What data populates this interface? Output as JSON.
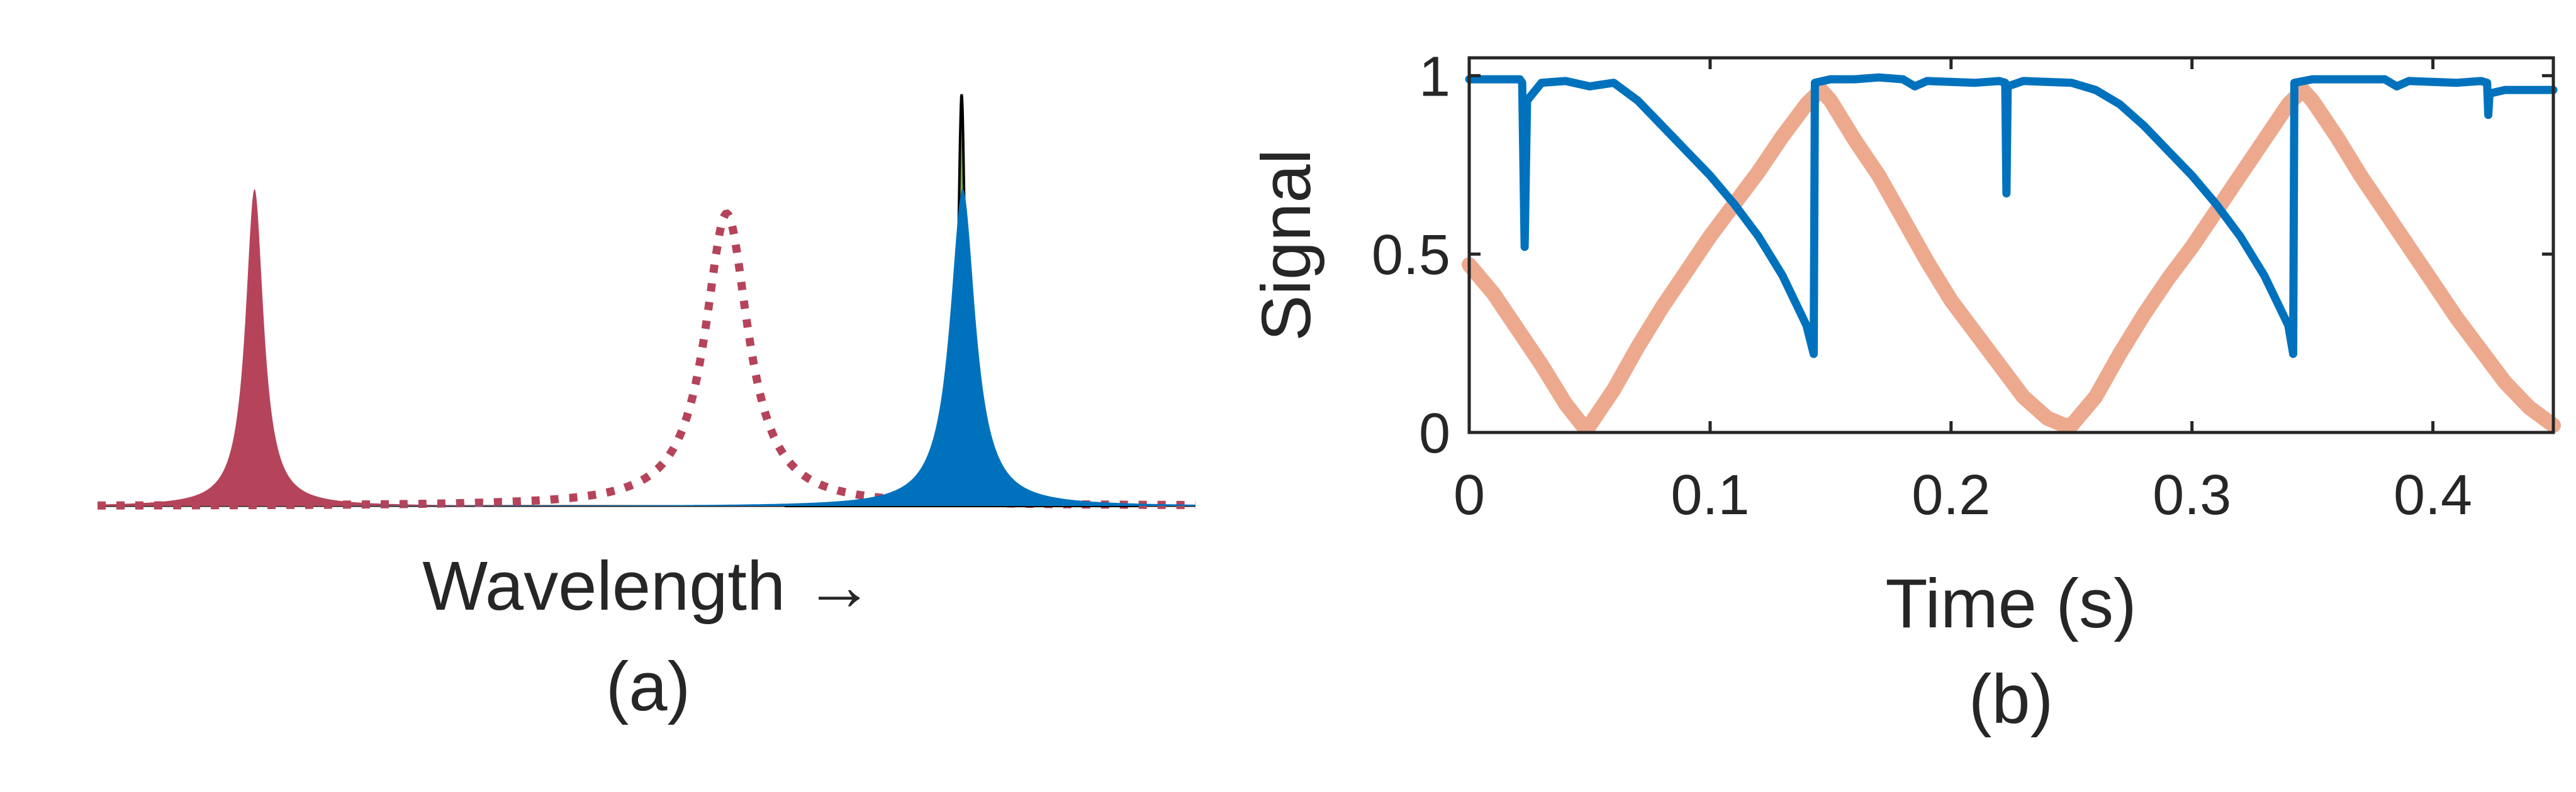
{
  "chart_data": [
    {
      "type": "line",
      "panel_label": "(a)",
      "xlabel": "Wavelength →",
      "ylabel": "",
      "axes_visible": false,
      "x_ticks": [],
      "series": [
        {
          "role": "filled-peak",
          "center": 0.143,
          "width": 0.01,
          "height": 0.77,
          "color": "#b5445a"
        },
        {
          "role": "dotted-peak",
          "center": 0.573,
          "width": 0.024,
          "height": 0.71,
          "color": "#b5445a"
        },
        {
          "role": "filled-peak",
          "center": 0.787,
          "width": 0.004,
          "height": 1.0,
          "color": "#77ac30"
        },
        {
          "role": "filled-peak",
          "center": 0.788,
          "width": 0.014,
          "height": 0.77,
          "color": "#0072bd"
        }
      ]
    },
    {
      "type": "line",
      "panel_label": "(b)",
      "xlabel": "Time (s)",
      "ylabel": "Signal",
      "xlim": [
        0,
        0.45
      ],
      "ylim": [
        0,
        1.05
      ],
      "x_ticks": [
        "0",
        "0.1",
        "0.2",
        "0.3",
        "0.4"
      ],
      "x_tick_values": [
        0,
        0.1,
        0.2,
        0.3,
        0.4
      ],
      "y_ticks": [
        "0",
        "0.5",
        "1"
      ],
      "y_tick_values": [
        0,
        0.5,
        1
      ],
      "grid": false,
      "series": [
        {
          "color": "#0072bd",
          "points": [
            [
              0,
              0.99
            ],
            [
              0.021,
              0.99
            ],
            [
              0.022,
              0.98
            ],
            [
              0.023,
              0.52
            ],
            [
              0.024,
              0.93
            ],
            [
              0.03,
              0.98
            ],
            [
              0.04,
              0.985
            ],
            [
              0.05,
              0.97
            ],
            [
              0.06,
              0.98
            ],
            [
              0.07,
              0.93
            ],
            [
              0.08,
              0.86
            ],
            [
              0.09,
              0.79
            ],
            [
              0.1,
              0.72
            ],
            [
              0.11,
              0.64
            ],
            [
              0.12,
              0.55
            ],
            [
              0.13,
              0.44
            ],
            [
              0.14,
              0.3
            ],
            [
              0.143,
              0.22
            ],
            [
              0.1435,
              0.98
            ],
            [
              0.15,
              0.99
            ],
            [
              0.16,
              0.99
            ],
            [
              0.17,
              0.995
            ],
            [
              0.18,
              0.99
            ],
            [
              0.185,
              0.97
            ],
            [
              0.19,
              0.985
            ],
            [
              0.21,
              0.98
            ],
            [
              0.22,
              0.985
            ],
            [
              0.2225,
              0.98
            ],
            [
              0.223,
              0.67
            ],
            [
              0.2235,
              0.97
            ],
            [
              0.23,
              0.985
            ],
            [
              0.25,
              0.98
            ],
            [
              0.26,
              0.96
            ],
            [
              0.27,
              0.92
            ],
            [
              0.28,
              0.86
            ],
            [
              0.29,
              0.79
            ],
            [
              0.3,
              0.72
            ],
            [
              0.31,
              0.64
            ],
            [
              0.32,
              0.55
            ],
            [
              0.33,
              0.44
            ],
            [
              0.34,
              0.3
            ],
            [
              0.342,
              0.22
            ],
            [
              0.3425,
              0.98
            ],
            [
              0.35,
              0.99
            ],
            [
              0.36,
              0.99
            ],
            [
              0.37,
              0.99
            ],
            [
              0.38,
              0.99
            ],
            [
              0.385,
              0.97
            ],
            [
              0.39,
              0.985
            ],
            [
              0.41,
              0.98
            ],
            [
              0.42,
              0.985
            ],
            [
              0.4225,
              0.98
            ],
            [
              0.423,
              0.89
            ],
            [
              0.4235,
              0.95
            ],
            [
              0.43,
              0.96
            ],
            [
              0.45,
              0.96
            ]
          ]
        },
        {
          "color": "#eda98d",
          "points": [
            [
              0,
              0.47
            ],
            [
              0.01,
              0.39
            ],
            [
              0.02,
              0.29
            ],
            [
              0.03,
              0.19
            ],
            [
              0.04,
              0.08
            ],
            [
              0.047,
              0.02
            ],
            [
              0.05,
              0.02
            ],
            [
              0.06,
              0.12
            ],
            [
              0.07,
              0.24
            ],
            [
              0.08,
              0.35
            ],
            [
              0.09,
              0.45
            ],
            [
              0.1,
              0.55
            ],
            [
              0.11,
              0.64
            ],
            [
              0.12,
              0.73
            ],
            [
              0.13,
              0.83
            ],
            [
              0.14,
              0.92
            ],
            [
              0.146,
              0.96
            ],
            [
              0.15,
              0.93
            ],
            [
              0.16,
              0.82
            ],
            [
              0.17,
              0.72
            ],
            [
              0.18,
              0.6
            ],
            [
              0.19,
              0.48
            ],
            [
              0.2,
              0.37
            ],
            [
              0.21,
              0.28
            ],
            [
              0.22,
              0.19
            ],
            [
              0.23,
              0.1
            ],
            [
              0.24,
              0.04
            ],
            [
              0.247,
              0.02
            ],
            [
              0.25,
              0.02
            ],
            [
              0.26,
              0.1
            ],
            [
              0.27,
              0.22
            ],
            [
              0.28,
              0.33
            ],
            [
              0.29,
              0.43
            ],
            [
              0.3,
              0.52
            ],
            [
              0.31,
              0.62
            ],
            [
              0.32,
              0.72
            ],
            [
              0.33,
              0.82
            ],
            [
              0.34,
              0.92
            ],
            [
              0.346,
              0.96
            ],
            [
              0.35,
              0.93
            ],
            [
              0.36,
              0.83
            ],
            [
              0.37,
              0.72
            ],
            [
              0.38,
              0.62
            ],
            [
              0.39,
              0.52
            ],
            [
              0.4,
              0.42
            ],
            [
              0.41,
              0.32
            ],
            [
              0.42,
              0.23
            ],
            [
              0.43,
              0.14
            ],
            [
              0.44,
              0.07
            ],
            [
              0.45,
              0.02
            ]
          ]
        }
      ]
    }
  ]
}
